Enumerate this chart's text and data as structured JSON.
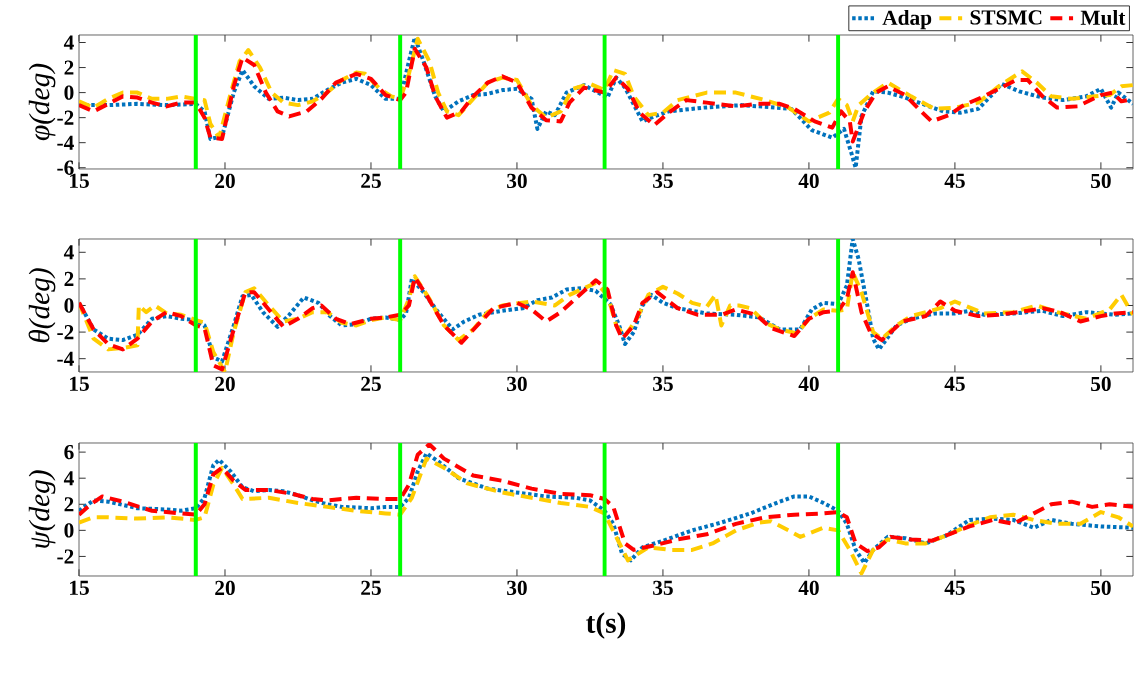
{
  "chart_data": [
    {
      "type": "line",
      "ylabel": "φ(deg)",
      "xlim": [
        15,
        51.1
      ],
      "ylim": [
        -6.1,
        4.6
      ],
      "xticks": [
        15,
        20,
        25,
        30,
        35,
        40,
        45,
        50
      ],
      "yticks": [
        -6,
        -4,
        -2,
        0,
        2,
        4
      ],
      "legend": "top right",
      "ref_lines": [
        {
          "axis": "x",
          "value": 19,
          "color": "#00ff00"
        },
        {
          "axis": "x",
          "value": 26,
          "color": "#00ff00"
        },
        {
          "axis": "x",
          "value": 33,
          "color": "#00ff00"
        },
        {
          "axis": "x",
          "value": 41,
          "color": "#00ff00"
        }
      ],
      "series": [
        {
          "name": "Adap",
          "color": "#0072bd",
          "line_style": "dotted",
          "x": [
            15,
            16,
            17,
            18,
            19,
            19.3,
            19.5,
            19.9,
            20.3,
            20.6,
            21,
            21.5,
            22,
            22.5,
            23,
            23.5,
            24,
            24.5,
            25,
            25.5,
            26,
            26.3,
            26.5,
            26.8,
            27.2,
            27.5,
            28,
            28.5,
            29,
            29.5,
            30,
            30.5,
            30.7,
            31,
            31.3,
            31.7,
            32.3,
            32.7,
            33.1,
            33.4,
            33.7,
            34.3,
            34.7,
            35.2,
            36.4,
            37.7,
            38.9,
            39.4,
            40.1,
            40.8,
            41.2,
            41.45,
            41.6,
            41.8,
            42.2,
            42.7,
            43.3,
            44,
            44.6,
            45.2,
            45.8,
            46.3,
            46.6,
            47.2,
            48,
            48.7,
            49.5,
            50,
            50.35,
            50.6,
            51.1
          ],
          "values": [
            -1.0,
            -1.0,
            -0.9,
            -1.0,
            -0.9,
            -1.5,
            -3.7,
            -3.5,
            0,
            1.8,
            0.5,
            -0.5,
            -0.4,
            -0.6,
            -0.5,
            0.2,
            0.8,
            1.1,
            0.6,
            -0.5,
            -0.5,
            2.5,
            4.4,
            2.5,
            -0.3,
            -1.5,
            -0.7,
            -0.2,
            -0.1,
            0.2,
            0.3,
            -0.5,
            -2.9,
            -1.5,
            -1.8,
            0,
            0.6,
            0.1,
            -0.4,
            1.2,
            0.4,
            -2.3,
            -1.9,
            -1.5,
            -1.2,
            -1.0,
            -1.2,
            -1.3,
            -3.0,
            -3.6,
            -2.9,
            -4.8,
            -6.0,
            -1.9,
            0.1,
            0,
            -0.4,
            -1.0,
            -1.5,
            -1.6,
            -1.3,
            -0.1,
            0.7,
            0.1,
            -0.4,
            -0.6,
            -0.3,
            0.3,
            -1.2,
            0,
            -0.9
          ]
        },
        {
          "name": "STSMC",
          "color": "#ffcc00",
          "line_style": "dashed",
          "x": [
            15,
            15.5,
            16,
            16.5,
            17,
            17.5,
            18,
            18.5,
            19,
            19.3,
            19.5,
            19.8,
            20.2,
            20.5,
            20.8,
            21.2,
            21.6,
            22,
            22.5,
            23,
            23.5,
            24,
            24.5,
            24.8,
            25.3,
            25.7,
            26,
            26.3,
            26.6,
            27,
            27.3,
            27.6,
            28,
            28.5,
            29,
            29.5,
            30,
            30.5,
            31,
            31.5,
            31.9,
            32.5,
            33,
            33.3,
            33.7,
            34,
            34.5,
            35,
            35.5,
            36.5,
            37.5,
            38.5,
            39.3,
            40,
            40.7,
            41,
            41.3,
            41.5,
            41.7,
            42.2,
            42.7,
            43.5,
            44.3,
            45,
            45.8,
            46.5,
            47.3,
            47.8,
            48.3,
            49,
            49.8,
            50.3,
            50.7,
            51.1
          ],
          "values": [
            -0.7,
            -1.2,
            -0.5,
            0,
            0,
            -0.5,
            -0.5,
            -0.3,
            -0.5,
            -0.6,
            -2.5,
            -3.6,
            0,
            2.5,
            3.4,
            2.0,
            0,
            -0.8,
            -1.0,
            -0.7,
            0,
            1.0,
            1.6,
            1.5,
            0.3,
            -0.3,
            -0.5,
            1.5,
            4.3,
            2.5,
            0,
            -1.5,
            -1.8,
            -0.5,
            0.8,
            1.2,
            1.0,
            -1.0,
            -2.0,
            -1.5,
            0.3,
            0.7,
            0.2,
            1.8,
            1.5,
            -0.3,
            -1.8,
            -1.6,
            -0.6,
            0,
            0,
            -0.6,
            -1.2,
            -2.3,
            -1.6,
            -0.5,
            -1.0,
            -2.3,
            -1.0,
            0,
            0.8,
            -0.3,
            -1.3,
            -1.2,
            -0.8,
            0.5,
            1.7,
            0.8,
            -0.3,
            -0.5,
            -0.3,
            -0.2,
            0.5,
            0.6
          ]
        },
        {
          "name": "Mult",
          "color": "#ff0000",
          "line_style": "dashed",
          "x": [
            15,
            15.5,
            16,
            16.5,
            17,
            17.5,
            18,
            18.5,
            19,
            19.3,
            19.5,
            19.9,
            20.3,
            20.6,
            21,
            21.4,
            21.8,
            22.2,
            22.8,
            23.3,
            23.8,
            24.5,
            25,
            25.5,
            26,
            26.2,
            26.5,
            26.9,
            27.2,
            27.6,
            28.1,
            28.5,
            29,
            29.5,
            30,
            30.5,
            31,
            31.5,
            31.8,
            32.3,
            33,
            33.4,
            33.8,
            34.2,
            34.7,
            35.2,
            35.8,
            36.5,
            37.5,
            38.2,
            39,
            39.5,
            40.2,
            40.8,
            41.1,
            41.4,
            41.5,
            41.9,
            42.3,
            42.7,
            43.3,
            43.8,
            44.2,
            44.8,
            45.3,
            45.9,
            46.5,
            47.1,
            47.5,
            48,
            48.5,
            49.2,
            50,
            50.4,
            50.7,
            51.1
          ],
          "values": [
            -1.0,
            -1.5,
            -0.9,
            -0.3,
            -0.4,
            -0.8,
            -1.1,
            -0.8,
            -0.8,
            -2.0,
            -3.6,
            -3.7,
            0.5,
            2.8,
            2.2,
            0,
            -1.5,
            -1.9,
            -1.5,
            -0.5,
            0.8,
            1.5,
            1.1,
            -0.2,
            -0.6,
            0,
            3.5,
            2.0,
            -0.3,
            -2.0,
            -1.5,
            -0.3,
            0.8,
            1.3,
            0.8,
            -1.2,
            -2.2,
            -2.3,
            -0.8,
            0.4,
            0.0,
            1.2,
            0.3,
            -1.6,
            -2.6,
            -1.6,
            -0.6,
            -0.8,
            -1.1,
            -0.9,
            -0.9,
            -1.3,
            -2.3,
            -2.8,
            -1.5,
            -2.3,
            -3.9,
            -1.5,
            0,
            0.5,
            -0.2,
            -1.4,
            -2.3,
            -1.8,
            -1.0,
            -0.4,
            0.3,
            1.0,
            1.0,
            -0.3,
            -1.2,
            -1.1,
            -0.2,
            0,
            -0.7,
            -0.5
          ]
        }
      ]
    },
    {
      "type": "line",
      "ylabel": "θ(deg)",
      "xlim": [
        15,
        51.1
      ],
      "ylim": [
        -5,
        5
      ],
      "xticks": [
        15,
        20,
        25,
        30,
        35,
        40,
        45,
        50
      ],
      "yticks": [
        -4,
        -2,
        0,
        2,
        4
      ],
      "ref_lines": [
        {
          "axis": "x",
          "value": 19,
          "color": "#00ff00"
        },
        {
          "axis": "x",
          "value": 26,
          "color": "#00ff00"
        },
        {
          "axis": "x",
          "value": 33,
          "color": "#00ff00"
        },
        {
          "axis": "x",
          "value": 41,
          "color": "#00ff00"
        }
      ],
      "series": [
        {
          "color": "#0072bd",
          "line_style": "dotted",
          "x": [
            15,
            15.5,
            16,
            16.5,
            17,
            17.5,
            18,
            18.5,
            19,
            19.3,
            19.6,
            19.9,
            20.3,
            20.6,
            20.9,
            21.3,
            21.8,
            22.2,
            22.7,
            23.2,
            23.6,
            24,
            24.5,
            25,
            25.5,
            26,
            26.2,
            26.4,
            26.8,
            27.3,
            27.8,
            28.2,
            28.7,
            29.5,
            30.2,
            30.7,
            31.2,
            31.7,
            32.2,
            32.7,
            33.2,
            33.5,
            33.7,
            34,
            34.3,
            34.6,
            35,
            35.5,
            36,
            36.5,
            37.5,
            38.3,
            39,
            39.7,
            40.1,
            40.5,
            41,
            41.3,
            41.5,
            41.7,
            42,
            42.2,
            42.4,
            43,
            43.5,
            44.3,
            45,
            45.5,
            46,
            47,
            48,
            48.7,
            49.5,
            50.5,
            51.1
          ],
          "values": [
            0.2,
            -1.8,
            -2.5,
            -2.6,
            -2.2,
            -1.0,
            -0.8,
            -1.0,
            -1.1,
            -1.5,
            -3.9,
            -4.2,
            -1.5,
            0.7,
            0.8,
            -0.5,
            -1.6,
            -0.7,
            0.6,
            0.2,
            -0.8,
            -1.5,
            -1.4,
            -1.0,
            -0.9,
            -1.1,
            -0.6,
            2.0,
            1.0,
            -0.5,
            -1.8,
            -1.2,
            -0.7,
            -0.4,
            -0.2,
            0.4,
            0.6,
            1.2,
            1.3,
            1.1,
            0.1,
            -1.5,
            -2.9,
            -2.0,
            0,
            0.8,
            0.2,
            -0.2,
            -0.4,
            -0.6,
            -0.7,
            -0.9,
            -1.8,
            -1.8,
            -0.3,
            0.2,
            0.1,
            1.5,
            5.0,
            3.5,
            0,
            -2.5,
            -3.3,
            -1.5,
            -1.0,
            -0.6,
            -0.6,
            -0.4,
            -0.7,
            -0.6,
            -0.4,
            -0.8,
            -0.5,
            -0.7,
            -0.6
          ]
        },
        {
          "color": "#ffcc00",
          "line_style": "dashed",
          "x": [
            15,
            15.5,
            16,
            16.5,
            17,
            17.05,
            17.3,
            17.6,
            18,
            18.5,
            19,
            19.3,
            19.6,
            20,
            20.3,
            20.7,
            21,
            21.5,
            22,
            22.5,
            23,
            23.5,
            24,
            24.5,
            25,
            25.5,
            26,
            26.3,
            26.5,
            27,
            27.5,
            28,
            28.5,
            29,
            29.5,
            30.5,
            31.3,
            31.8,
            32.3,
            32.7,
            33.1,
            33.4,
            33.7,
            34.1,
            34.5,
            35,
            35.5,
            36,
            36.5,
            36.8,
            37,
            37.3,
            37.6,
            38,
            38.5,
            39,
            39.6,
            40,
            40.5,
            41,
            41.3,
            41.5,
            41.8,
            42.2,
            42.5,
            43,
            43.5,
            44.5,
            45,
            46,
            47,
            47.8,
            48.5,
            49.5,
            50.3,
            50.7,
            51.1
          ],
          "values": [
            0.2,
            -2.5,
            -3.3,
            -3.2,
            -3.0,
            0,
            -0.5,
            0,
            -0.6,
            -0.7,
            -1.1,
            -1.3,
            -3.5,
            -5.0,
            -2.0,
            1.0,
            1.3,
            0,
            -1.2,
            -1.0,
            -0.5,
            -0.5,
            -1.3,
            -1.5,
            -1.1,
            -0.9,
            -1.1,
            0.5,
            2.2,
            0.5,
            -1.5,
            -2.6,
            -1.8,
            -0.5,
            0,
            0.3,
            0.0,
            0.8,
            1.3,
            1.7,
            0.8,
            -1.5,
            -2.3,
            -1.0,
            0.8,
            1.4,
            0.9,
            0.2,
            -0.1,
            0.8,
            -1.5,
            0,
            0,
            -0.2,
            -1.3,
            -1.8,
            -2.1,
            -1.0,
            -0.3,
            -0.4,
            -0.3,
            2.5,
            1.0,
            -2.0,
            -2.5,
            -1.5,
            -0.8,
            -0.2,
            0.3,
            -0.6,
            -0.5,
            0,
            -0.5,
            -1.0,
            -0.3,
            0.8,
            -0.7
          ]
        },
        {
          "color": "#ff0000",
          "line_style": "dashed",
          "x": [
            15,
            15.5,
            16,
            16.5,
            17,
            17.5,
            18,
            18.5,
            19,
            19.3,
            19.6,
            19.9,
            20.3,
            20.7,
            21,
            21.5,
            22,
            22.5,
            23,
            23.3,
            23.8,
            24.3,
            25,
            25.5,
            26,
            26.3,
            26.5,
            26.9,
            27.5,
            28.1,
            28.6,
            29.2,
            30,
            30.5,
            31,
            31.5,
            32,
            32.7,
            33.1,
            33.4,
            33.6,
            34,
            34.3,
            34.8,
            35.5,
            36.2,
            37,
            37.5,
            38.2,
            38.7,
            39.5,
            40,
            40.5,
            41,
            41.3,
            41.5,
            41.8,
            42.1,
            42.5,
            43.2,
            44,
            44.5,
            45,
            45.8,
            46.5,
            47.5,
            48,
            48.6,
            49.3,
            50,
            50.5,
            51.1
          ],
          "values": [
            0.2,
            -1.8,
            -2.9,
            -3.3,
            -2.5,
            -1.2,
            -0.5,
            -0.8,
            -1.5,
            -1.7,
            -4.5,
            -4.8,
            -1.8,
            1.0,
            1.0,
            -0.3,
            -1.6,
            -1.0,
            -0.2,
            0,
            -1.0,
            -1.4,
            -1.0,
            -0.9,
            -0.7,
            0,
            2.1,
            0.8,
            -1.5,
            -2.8,
            -1.6,
            -0.2,
            0.2,
            -0.3,
            -1.2,
            -0.5,
            0.5,
            1.9,
            1.2,
            -1.5,
            -2.5,
            -1.5,
            0.2,
            1.0,
            -0.2,
            -0.7,
            -0.7,
            -0.3,
            -0.7,
            -1.7,
            -2.3,
            -1.0,
            -0.5,
            -0.4,
            0.5,
            2.5,
            -0.5,
            -2.0,
            -2.6,
            -1.2,
            -0.8,
            0.3,
            -0.4,
            -0.8,
            -0.7,
            -0.4,
            -0.2,
            -0.5,
            -1.2,
            -0.8,
            -0.6,
            -0.5
          ]
        }
      ]
    },
    {
      "type": "line",
      "xlabel": "t(s)",
      "ylabel": "ψ(deg)",
      "xlim": [
        15,
        51.1
      ],
      "ylim": [
        -3.5,
        6.7
      ],
      "xticks": [
        15,
        20,
        25,
        30,
        35,
        40,
        45,
        50
      ],
      "yticks": [
        -2,
        0,
        2,
        4,
        6
      ],
      "ref_lines": [
        {
          "axis": "x",
          "value": 19,
          "color": "#00ff00"
        },
        {
          "axis": "x",
          "value": 26,
          "color": "#00ff00"
        },
        {
          "axis": "x",
          "value": 33,
          "color": "#00ff00"
        },
        {
          "axis": "x",
          "value": 41,
          "color": "#00ff00"
        }
      ],
      "series": [
        {
          "color": "#0072bd",
          "line_style": "dotted",
          "x": [
            15,
            15.5,
            16,
            17,
            18,
            18.5,
            19,
            19.3,
            19.6,
            19.8,
            20.2,
            20.6,
            21,
            21.5,
            22,
            22.5,
            23,
            23.5,
            24,
            25,
            25.5,
            26,
            26.3,
            26.6,
            26.9,
            27.3,
            28,
            29,
            30,
            31,
            32,
            32.5,
            33,
            33.3,
            33.6,
            33.9,
            34.3,
            35,
            36,
            37,
            38,
            39,
            39.5,
            40,
            40.5,
            41,
            41.3,
            41.6,
            41.9,
            42.2,
            42.7,
            43.3,
            44,
            44.7,
            45.5,
            46.3,
            47,
            47.7,
            48.3,
            49,
            50,
            51.1
          ],
          "values": [
            1.5,
            2.3,
            2.2,
            1.7,
            1.6,
            1.5,
            1.7,
            2.5,
            5.0,
            5.4,
            4.5,
            3.3,
            3.0,
            3.1,
            3.0,
            2.7,
            2.3,
            2.0,
            1.8,
            1.7,
            1.8,
            1.8,
            2.5,
            4.5,
            5.9,
            5.3,
            4.0,
            3.2,
            2.9,
            2.6,
            2.5,
            2.3,
            1.5,
            0.5,
            -1.8,
            -2.3,
            -1.3,
            -0.8,
            0,
            0.6,
            1.3,
            2.2,
            2.6,
            2.6,
            2.1,
            1.5,
            0.5,
            -1.5,
            -2.5,
            -1.5,
            -0.5,
            -0.6,
            -1.0,
            -0.4,
            0.8,
            0.9,
            0.8,
            0.2,
            0.8,
            0.5,
            0.3,
            0.2
          ]
        },
        {
          "color": "#ffcc00",
          "line_style": "dashed",
          "x": [
            15,
            15.5,
            16,
            17,
            18,
            19,
            19.3,
            19.6,
            19.9,
            20.3,
            20.6,
            21.5,
            22.5,
            23.5,
            24.5,
            25.5,
            26,
            26.4,
            26.9,
            27.5,
            28.3,
            29.5,
            30.5,
            31.5,
            32.5,
            33,
            33.4,
            33.8,
            34.5,
            35.3,
            36,
            36.7,
            37.5,
            38.3,
            38.7,
            39.3,
            39.7,
            40.5,
            41,
            41.4,
            41.8,
            42.2,
            42.7,
            43.3,
            44,
            44.7,
            45.5,
            46.2,
            47,
            47.7,
            48.5,
            49.3,
            50,
            50.6,
            51.1
          ],
          "values": [
            0.6,
            1.0,
            1.0,
            0.9,
            1.0,
            0.8,
            1.0,
            3.5,
            4.8,
            3.5,
            2.4,
            2.5,
            2.1,
            1.8,
            1.5,
            1.3,
            1.2,
            2.5,
            5.5,
            4.8,
            3.6,
            2.9,
            2.5,
            2.1,
            1.8,
            1.3,
            -0.5,
            -2.3,
            -1.3,
            -1.5,
            -1.5,
            -1.0,
            0,
            0.6,
            0.7,
            0,
            -0.5,
            0.2,
            0,
            -1.5,
            -3.3,
            -1.5,
            -0.7,
            -1.0,
            -1.0,
            -0.4,
            0.4,
            1.0,
            1.2,
            0.8,
            0.5,
            0.5,
            1.4,
            1.0,
            0.3
          ]
        },
        {
          "color": "#ff0000",
          "line_style": "dashed",
          "x": [
            15,
            15.4,
            15.8,
            16.5,
            17.5,
            18.5,
            19,
            19.3,
            19.6,
            19.9,
            20.3,
            20.7,
            21.5,
            22.3,
            23,
            23.5,
            24.5,
            25.5,
            26,
            26.3,
            26.6,
            27,
            27.5,
            28.5,
            29.5,
            30.5,
            31.5,
            32.5,
            33,
            33.3,
            33.7,
            34,
            34.8,
            35.5,
            36.5,
            37.5,
            38.5,
            39.5,
            40.5,
            41,
            41.3,
            41.6,
            42,
            42.4,
            42.8,
            43.5,
            44.2,
            44.8,
            45.5,
            46.3,
            47,
            47.7,
            48.3,
            49,
            49.7,
            50.3,
            51.1
          ],
          "values": [
            1.2,
            2.0,
            2.6,
            2.2,
            1.5,
            1.3,
            1.2,
            2.0,
            4.3,
            4.8,
            3.8,
            3.1,
            3.1,
            2.8,
            2.4,
            2.3,
            2.5,
            2.4,
            2.4,
            3.5,
            5.8,
            6.6,
            5.5,
            4.2,
            3.8,
            3.2,
            2.8,
            2.7,
            2.4,
            1.8,
            -1.0,
            -1.5,
            -1.1,
            -0.7,
            -0.3,
            0.5,
            1.0,
            1.2,
            1.3,
            1.4,
            1.0,
            -1.0,
            -1.6,
            -1.3,
            -0.5,
            -0.7,
            -0.8,
            -0.3,
            0.3,
            0.8,
            0.5,
            1.3,
            2.0,
            2.2,
            1.8,
            2.0,
            1.8
          ]
        }
      ]
    }
  ]
}
